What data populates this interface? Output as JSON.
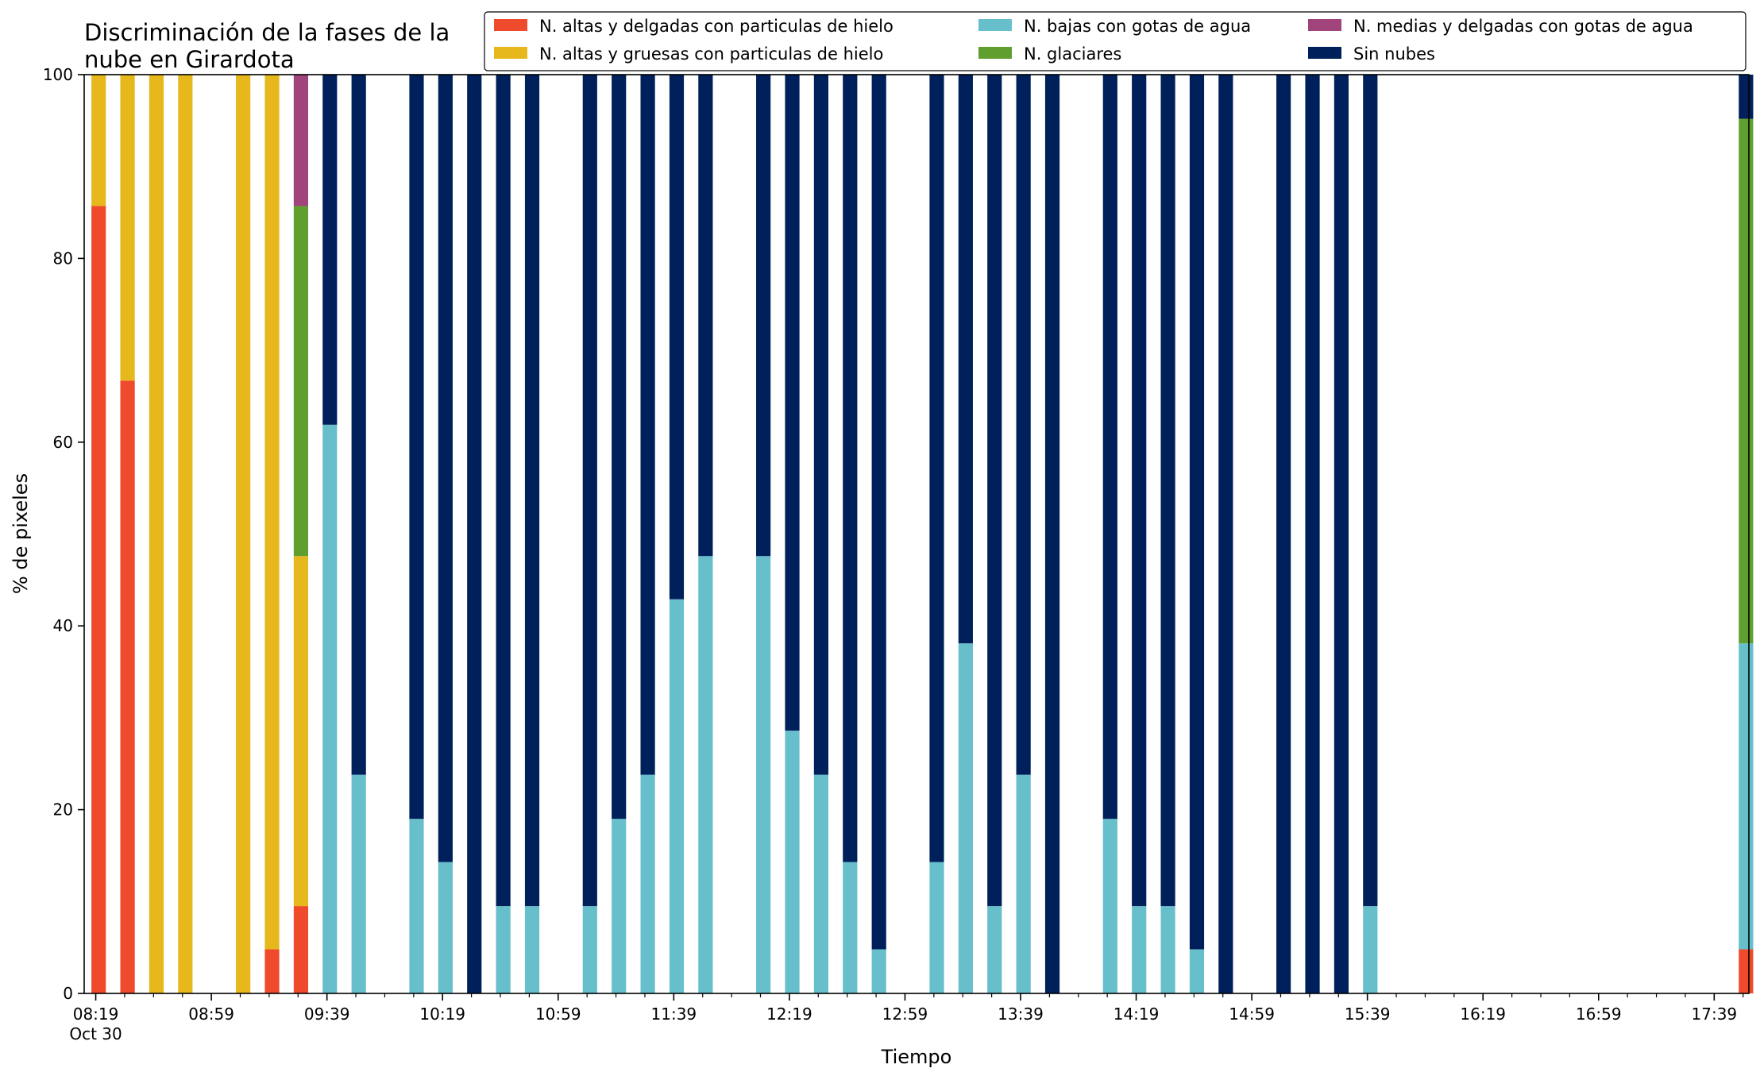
{
  "chart_data": {
    "type": "bar",
    "stacked": true,
    "title": "Discriminación de la fases de la nube en Girardota",
    "title_lines": [
      "Discriminación de la fases de la",
      "nube en Girardota"
    ],
    "xlabel": "Tiempo",
    "ylabel": "% de pixeles",
    "ylim": [
      0,
      100
    ],
    "yticks": [
      0,
      20,
      40,
      60,
      80,
      100
    ],
    "xlim_minutes": [
      495,
      1071
    ],
    "xticks": [
      {
        "t": 499,
        "label": "08:19",
        "sublabel": "Oct 30"
      },
      {
        "t": 539,
        "label": "08:59"
      },
      {
        "t": 579,
        "label": "09:39"
      },
      {
        "t": 619,
        "label": "10:19"
      },
      {
        "t": 659,
        "label": "10:59"
      },
      {
        "t": 699,
        "label": "11:39"
      },
      {
        "t": 739,
        "label": "12:19"
      },
      {
        "t": 779,
        "label": "12:59"
      },
      {
        "t": 819,
        "label": "13:39"
      },
      {
        "t": 859,
        "label": "14:19"
      },
      {
        "t": 899,
        "label": "14:59"
      },
      {
        "t": 939,
        "label": "15:39"
      },
      {
        "t": 979,
        "label": "16:19"
      },
      {
        "t": 1019,
        "label": "16:59"
      },
      {
        "t": 1059,
        "label": "17:39"
      }
    ],
    "minor_tick_step_minutes": 10,
    "bar_width_minutes": 5,
    "legend": {
      "placement": "top-right",
      "entries": [
        "N. altas y delgadas con particulas de hielo",
        "N. altas y gruesas con particulas de hielo",
        "N. bajas con gotas de agua",
        "N. glaciares",
        "N. medias y delgadas con gotas de agua",
        "Sin nubes"
      ]
    },
    "series": [
      {
        "name": "N. altas y delgadas con particulas de hielo",
        "color": "#ef4a2c"
      },
      {
        "name": "N. altas y gruesas con particulas de hielo",
        "color": "#e6b81c"
      },
      {
        "name": "N. bajas con gotas de agua",
        "color": "#67bfcb"
      },
      {
        "name": "N. glaciares",
        "color": "#5f9f2f"
      },
      {
        "name": "N. medias y delgadas con gotas de agua",
        "color": "#a0447b"
      },
      {
        "name": "Sin nubes",
        "color": "#00205b"
      }
    ],
    "bars": [
      {
        "t": 500,
        "values": [
          85.7,
          14.3,
          0,
          0,
          0,
          0
        ]
      },
      {
        "t": 510,
        "values": [
          66.7,
          33.3,
          0,
          0,
          0,
          0
        ]
      },
      {
        "t": 520,
        "values": [
          0,
          100,
          0,
          0,
          0,
          0
        ]
      },
      {
        "t": 530,
        "values": [
          0,
          100,
          0,
          0,
          0,
          0
        ]
      },
      {
        "t": 550,
        "values": [
          0,
          100,
          0,
          0,
          0,
          0
        ]
      },
      {
        "t": 560,
        "values": [
          4.8,
          95.2,
          0,
          0,
          0,
          0
        ]
      },
      {
        "t": 570,
        "values": [
          9.5,
          38.1,
          0,
          38.1,
          14.3,
          0
        ]
      },
      {
        "t": 580,
        "values": [
          0,
          0,
          61.9,
          0,
          0,
          38.1
        ]
      },
      {
        "t": 590,
        "values": [
          0,
          0,
          23.8,
          0,
          0,
          76.2
        ]
      },
      {
        "t": 610,
        "values": [
          0,
          0,
          19.0,
          0,
          0,
          81.0
        ]
      },
      {
        "t": 620,
        "values": [
          0,
          0,
          14.3,
          0,
          0,
          85.7
        ]
      },
      {
        "t": 630,
        "values": [
          0,
          0,
          0,
          0,
          0,
          100
        ]
      },
      {
        "t": 640,
        "values": [
          0,
          0,
          9.5,
          0,
          0,
          90.5
        ]
      },
      {
        "t": 650,
        "values": [
          0,
          0,
          9.5,
          0,
          0,
          90.5
        ]
      },
      {
        "t": 670,
        "values": [
          0,
          0,
          9.5,
          0,
          0,
          90.5
        ]
      },
      {
        "t": 680,
        "values": [
          0,
          0,
          19.0,
          0,
          0,
          81.0
        ]
      },
      {
        "t": 690,
        "values": [
          0,
          0,
          23.8,
          0,
          0,
          76.2
        ]
      },
      {
        "t": 700,
        "values": [
          0,
          0,
          42.9,
          0,
          0,
          57.1
        ]
      },
      {
        "t": 710,
        "values": [
          0,
          0,
          47.6,
          0,
          0,
          52.4
        ]
      },
      {
        "t": 730,
        "values": [
          0,
          0,
          47.6,
          0,
          0,
          52.4
        ]
      },
      {
        "t": 740,
        "values": [
          0,
          0,
          28.6,
          0,
          0,
          71.4
        ]
      },
      {
        "t": 750,
        "values": [
          0,
          0,
          23.8,
          0,
          0,
          76.2
        ]
      },
      {
        "t": 760,
        "values": [
          0,
          0,
          14.3,
          0,
          0,
          85.7
        ]
      },
      {
        "t": 770,
        "values": [
          0,
          0,
          4.8,
          0,
          0,
          95.2
        ]
      },
      {
        "t": 790,
        "values": [
          0,
          0,
          14.3,
          0,
          0,
          85.7
        ]
      },
      {
        "t": 800,
        "values": [
          0,
          0,
          38.1,
          0,
          0,
          61.9
        ]
      },
      {
        "t": 810,
        "values": [
          0,
          0,
          9.5,
          0,
          0,
          90.5
        ]
      },
      {
        "t": 820,
        "values": [
          0,
          0,
          23.8,
          0,
          0,
          76.2
        ]
      },
      {
        "t": 830,
        "values": [
          0,
          0,
          0,
          0,
          0,
          100
        ]
      },
      {
        "t": 850,
        "values": [
          0,
          0,
          19.0,
          0,
          0,
          81.0
        ]
      },
      {
        "t": 860,
        "values": [
          0,
          0,
          9.5,
          0,
          0,
          90.5
        ]
      },
      {
        "t": 870,
        "values": [
          0,
          0,
          9.5,
          0,
          0,
          90.5
        ]
      },
      {
        "t": 880,
        "values": [
          0,
          0,
          4.8,
          0,
          0,
          95.2
        ]
      },
      {
        "t": 890,
        "values": [
          0,
          0,
          0,
          0,
          0,
          100
        ]
      },
      {
        "t": 910,
        "values": [
          0,
          0,
          0,
          0,
          0,
          100
        ]
      },
      {
        "t": 920,
        "values": [
          0,
          0,
          0,
          0,
          0,
          100
        ]
      },
      {
        "t": 930,
        "values": [
          0,
          0,
          0,
          0,
          0,
          100
        ]
      },
      {
        "t": 940,
        "values": [
          0,
          0,
          9.5,
          0,
          0,
          90.5
        ]
      },
      {
        "t": 1070,
        "values": [
          4.8,
          0,
          33.3,
          57.1,
          0,
          4.8
        ]
      }
    ]
  }
}
